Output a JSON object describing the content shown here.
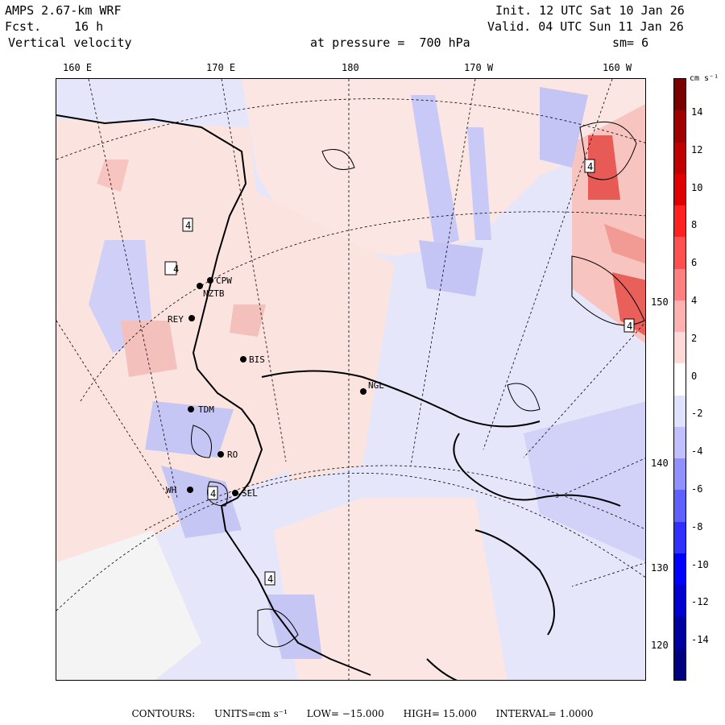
{
  "header": {
    "model": "AMPS 2.67-km WRF",
    "forecast_label": "Fcst.",
    "forecast_hours": "16 h",
    "field": "Vertical velocity",
    "init": "Init. 12 UTC Sat 10 Jan 26",
    "valid": "Valid. 04 UTC Sun 11 Jan 26",
    "pressure": "at pressure =  700 hPa",
    "smoothing": "sm= 6"
  },
  "longitude_labels": [
    "160 E",
    "170 E",
    "180",
    "170 W",
    "160 W"
  ],
  "latitude_labels": [
    "150 W",
    "140 W",
    "130 W",
    "120 W"
  ],
  "colorbar": {
    "unit": "cm s⁻¹",
    "ticks": [
      "14",
      "12",
      "10",
      "8",
      "6",
      "4",
      "2",
      "0",
      "-2",
      "-4",
      "-6",
      "-8",
      "-10",
      "-12",
      "-14"
    ],
    "colors": [
      "#7a0000",
      "#a00000",
      "#c00000",
      "#e00000",
      "#ff2020",
      "#ff5050",
      "#ff8080",
      "#ffb0b0",
      "#ffd8d8",
      "#ffffff",
      "#e0e0ff",
      "#c0c0ff",
      "#9090ff",
      "#6060ff",
      "#3030ff",
      "#0000ff",
      "#0000d0",
      "#0000a0",
      "#000080"
    ]
  },
  "stations": [
    {
      "name": "CPW"
    },
    {
      "name": "NZTB"
    },
    {
      "name": "REY"
    },
    {
      "name": "BIS"
    },
    {
      "name": "NGL"
    },
    {
      "name": "TDM"
    },
    {
      "name": "RO"
    },
    {
      "name": "WH"
    },
    {
      "name": "SEL"
    }
  ],
  "contour_labels": [
    "4",
    "4",
    "4",
    "4",
    "4",
    "4"
  ],
  "footer": {
    "contours": "CONTOURS:",
    "units": "UNITS=cm s⁻¹",
    "low": "LOW= −15.000",
    "high": "HIGH=  15.000",
    "interval": "INTERVAL=   1.0000"
  },
  "map_colors": {
    "positive": "#fbe0dd",
    "negative": "#e4e4fb",
    "land_line": "#000000"
  }
}
